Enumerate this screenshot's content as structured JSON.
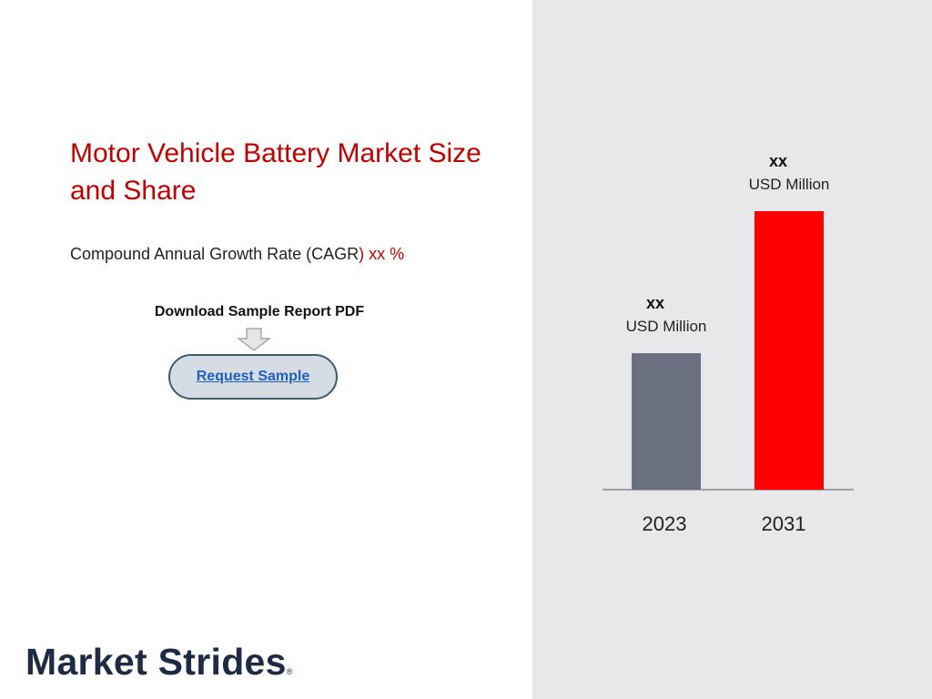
{
  "page": {
    "title": "Motor Vehicle Battery Market Size and Share",
    "cagr_label": "Compound Annual Growth Rate (CAGR",
    "cagr_paren": ")",
    "cagr_value": "xx %",
    "download_label": "Download Sample Report PDF",
    "request_button": "Request Sample",
    "logo_text": "Market Strides",
    "logo_reg": "®"
  },
  "chart_data": {
    "type": "bar",
    "categories": [
      "2023",
      "2031"
    ],
    "values": [
      0.49,
      1.0
    ],
    "value_labels": [
      "xx",
      "xx"
    ],
    "unit_labels": [
      "USD Million",
      "USD Million"
    ],
    "colors": [
      "#6b7080",
      "#ff0000"
    ],
    "ylim": [
      0,
      1
    ],
    "grid": false,
    "legend": "none",
    "title": "",
    "xlabel": "",
    "ylabel": ""
  },
  "colors": {
    "accent": "#c00000",
    "panel_bg": "#e8e8ea",
    "logo": "#1f2a44",
    "button_bg": "#d6dce4",
    "button_border": "#3a5e69",
    "link": "#1f5fbf"
  }
}
